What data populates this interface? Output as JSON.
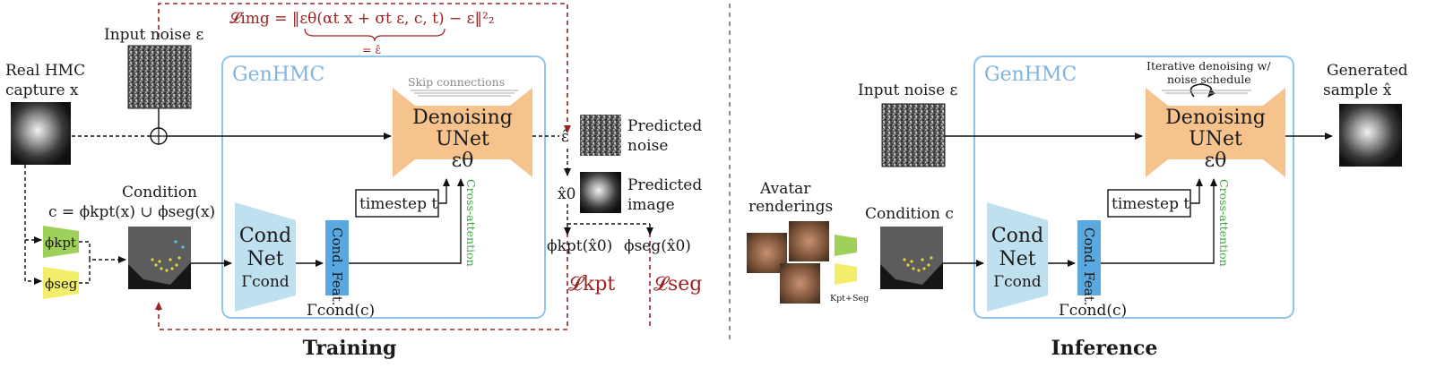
{
  "colors": {
    "genhmc_box": "#8ec3ec",
    "unet_fill": "#f7c38d",
    "cond_net_fill": "#bfe0ef",
    "cond_feat_fill": "#5aa8e0",
    "kpt_fill": "#9fd15a",
    "seg_fill": "#f3ee6a",
    "loss_red": "#9b2222",
    "cross_attn_green": "#3fa63f"
  },
  "training": {
    "title": "Training",
    "loss_img": "𝓛img = ‖εθ(αt x + σt ε, c, t) − ε‖²₂",
    "eq_eps": "= ε̂",
    "input_noise": "Input noise ε",
    "real_capture_1": "Real HMC",
    "real_capture_2": "capture x",
    "genhmc": "GenHMC",
    "skip": "Skip connections",
    "unet_1": "Denoising",
    "unet_2": "UNet",
    "unet_3": "εθ",
    "eps_hat": "ε̂",
    "pred_noise_1": "Predicted",
    "pred_noise_2": "noise",
    "pred_img_1": "Predicted",
    "pred_img_2": "image",
    "x0_hat": "x̂0",
    "condition_label": "Condition",
    "condition_eq": "c = ϕkpt(x) ∪ ϕseg(x)",
    "phi_kpt": "ϕkpt",
    "phi_seg": "ϕseg",
    "cond_net_1": "Cond",
    "cond_net_2": "Net",
    "cond_net_3": "Γcond",
    "cond_feat": "Cond. Feat.",
    "gamma_c": "Γcond(c)",
    "timestep": "timestep t",
    "cross_attn": "Cross-attention",
    "phi_kpt_x0": "ϕkpt(x̂0)",
    "phi_seg_x0": "ϕseg(x̂0)",
    "loss_kpt": "𝓛kpt",
    "loss_seg": "𝓛seg"
  },
  "inference": {
    "title": "Inference",
    "genhmc": "GenHMC",
    "input_noise": "Input noise ε",
    "iter_1": "Iterative denoising w/",
    "iter_2": "noise schedule",
    "generated_1": "Generated",
    "generated_2": "sample x̂",
    "unet_1": "Denoising",
    "unet_2": "UNet",
    "unet_3": "εθ",
    "avatar_1": "Avatar",
    "avatar_2": "renderings",
    "kpt_seg": "Kpt+Seg",
    "condition": "Condition c",
    "cond_net_1": "Cond",
    "cond_net_2": "Net",
    "cond_net_3": "Γcond",
    "cond_feat": "Cond. Feat.",
    "gamma_c": "Γcond(c)",
    "timestep": "timestep t",
    "cross_attn": "Cross-attention"
  }
}
